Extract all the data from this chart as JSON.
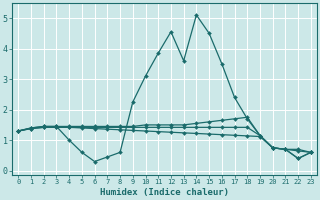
{
  "xlabel": "Humidex (Indice chaleur)",
  "bg_color": "#cce8e8",
  "line_color": "#1a6b6b",
  "grid_color": "#ffffff",
  "xlim": [
    -0.5,
    23.5
  ],
  "ylim": [
    -0.15,
    5.5
  ],
  "xticks": [
    0,
    1,
    2,
    3,
    4,
    5,
    6,
    7,
    8,
    9,
    10,
    11,
    12,
    13,
    14,
    15,
    16,
    17,
    18,
    19,
    20,
    21,
    22,
    23
  ],
  "yticks": [
    0,
    1,
    2,
    3,
    4,
    5
  ],
  "series": [
    {
      "x": [
        0,
        1,
        2,
        3,
        4,
        5,
        6,
        7,
        8,
        9,
        10,
        11,
        12,
        13,
        14,
        15,
        16,
        17,
        18,
        19,
        20,
        21,
        22,
        23
      ],
      "y": [
        1.3,
        1.4,
        1.45,
        1.45,
        1.0,
        0.6,
        0.3,
        0.45,
        0.6,
        2.25,
        3.1,
        3.85,
        4.55,
        3.6,
        5.1,
        4.5,
        3.5,
        2.4,
        1.7,
        1.15,
        0.75,
        0.7,
        0.4,
        0.6
      ]
    },
    {
      "x": [
        0,
        1,
        2,
        3,
        4,
        5,
        6,
        7,
        8,
        9,
        10,
        11,
        12,
        13,
        14,
        15,
        16,
        17,
        18,
        19,
        20,
        21,
        22,
        23
      ],
      "y": [
        1.3,
        1.4,
        1.45,
        1.45,
        1.45,
        1.45,
        1.45,
        1.45,
        1.45,
        1.45,
        1.5,
        1.5,
        1.5,
        1.5,
        1.55,
        1.6,
        1.65,
        1.7,
        1.75,
        1.15,
        0.75,
        0.7,
        0.7,
        0.6
      ]
    },
    {
      "x": [
        0,
        1,
        2,
        3,
        4,
        5,
        6,
        7,
        8,
        9,
        10,
        11,
        12,
        13,
        14,
        15,
        16,
        17,
        18,
        19,
        20,
        21,
        22,
        23
      ],
      "y": [
        1.3,
        1.38,
        1.42,
        1.42,
        1.42,
        1.4,
        1.38,
        1.36,
        1.34,
        1.32,
        1.3,
        1.28,
        1.26,
        1.24,
        1.22,
        1.2,
        1.18,
        1.16,
        1.14,
        1.12,
        0.75,
        0.7,
        0.65,
        0.6
      ]
    },
    {
      "x": [
        0,
        1,
        2,
        3,
        4,
        5,
        6,
        7,
        8,
        9,
        10,
        11,
        12,
        13,
        14,
        15,
        16,
        17,
        18,
        19,
        20,
        21,
        22,
        23
      ],
      "y": [
        1.3,
        1.38,
        1.42,
        1.42,
        1.42,
        1.42,
        1.42,
        1.42,
        1.42,
        1.42,
        1.42,
        1.42,
        1.42,
        1.42,
        1.42,
        1.42,
        1.42,
        1.42,
        1.42,
        1.15,
        0.75,
        0.7,
        0.4,
        0.6
      ]
    }
  ]
}
